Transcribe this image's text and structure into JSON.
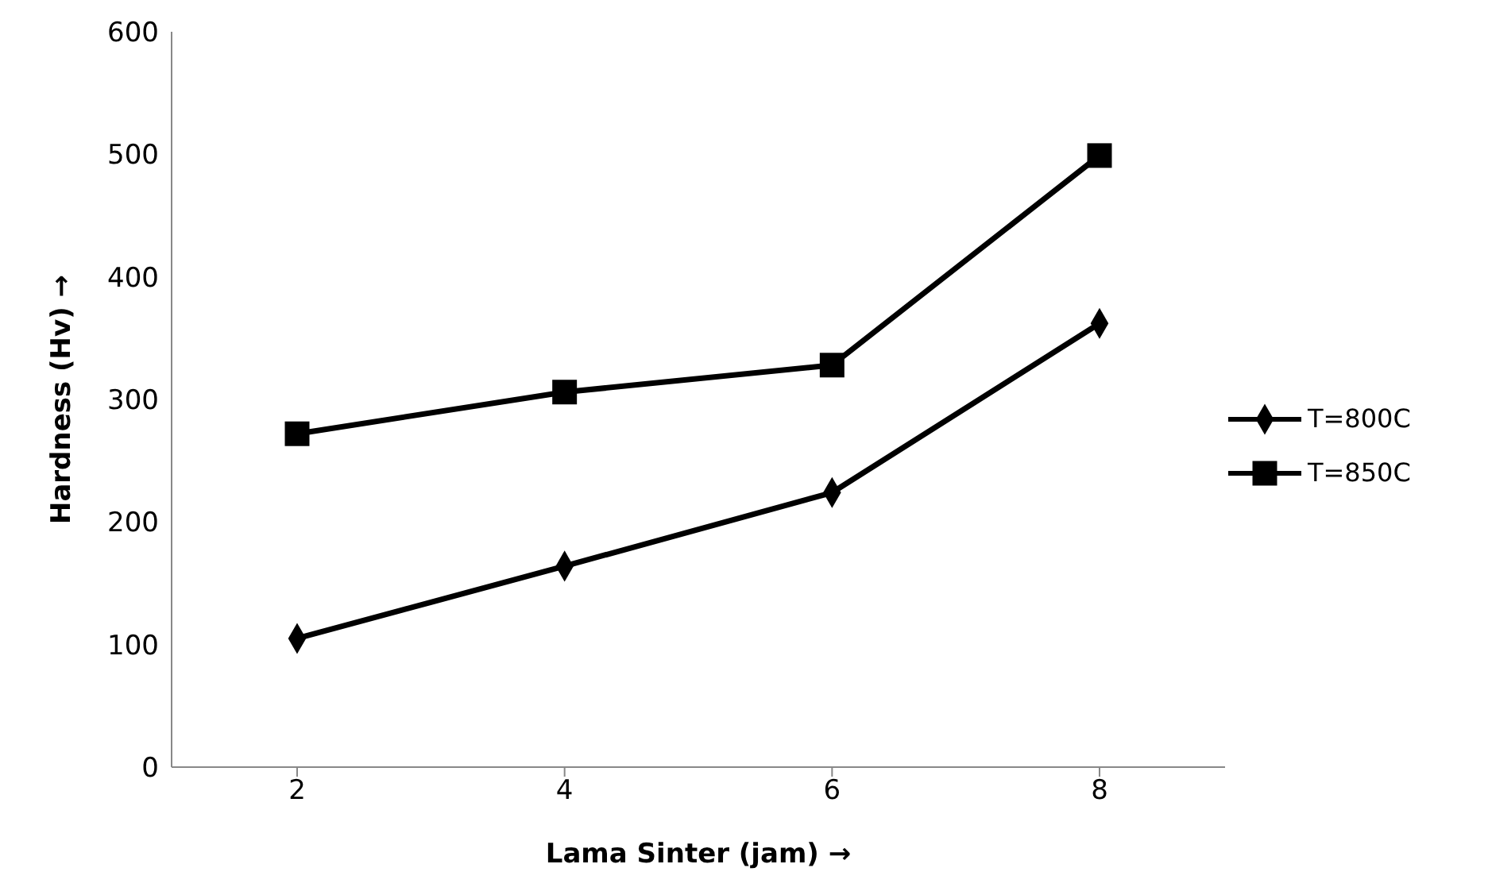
{
  "chart_data": {
    "type": "line",
    "xlabel": "Lama Sinter (jam) →",
    "ylabel": "Hardness (Hv)  →",
    "categories": [
      "2",
      "4",
      "6",
      "8"
    ],
    "ylim": [
      0,
      600
    ],
    "yticks": [
      0,
      100,
      200,
      300,
      400,
      500,
      600
    ],
    "grid": false,
    "legend": "right",
    "series": [
      {
        "name": "T=800C",
        "color": "#000000",
        "marker": "diamond",
        "values": [
          105,
          164,
          224,
          362
        ]
      },
      {
        "name": "T=850C",
        "color": "#000000",
        "marker": "square",
        "values": [
          272,
          306,
          328,
          499
        ]
      }
    ]
  }
}
